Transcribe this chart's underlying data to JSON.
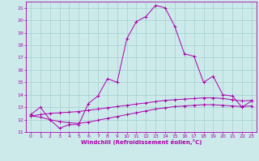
{
  "xlabel": "Windchill (Refroidissement éolien,°C)",
  "xlim": [
    -0.5,
    23.5
  ],
  "ylim": [
    11,
    21.5
  ],
  "yticks": [
    11,
    12,
    13,
    14,
    15,
    16,
    17,
    18,
    19,
    20,
    21
  ],
  "xticks": [
    0,
    1,
    2,
    3,
    4,
    5,
    6,
    7,
    8,
    9,
    10,
    11,
    12,
    13,
    14,
    15,
    16,
    17,
    18,
    19,
    20,
    21,
    22,
    23
  ],
  "bg_color": "#cceaea",
  "grid_color": "#aad4d4",
  "line_color": "#aa00aa",
  "line1_x": [
    0,
    1,
    2,
    3,
    4,
    5,
    6,
    7,
    8,
    9,
    10,
    11,
    12,
    13,
    14,
    15,
    16,
    17,
    18,
    19,
    20,
    21,
    22,
    23
  ],
  "line1_y": [
    12.4,
    13.0,
    12.0,
    11.3,
    11.6,
    11.6,
    13.3,
    13.9,
    15.3,
    15.0,
    18.5,
    19.9,
    20.3,
    21.2,
    21.0,
    19.5,
    17.3,
    17.1,
    15.0,
    15.5,
    14.0,
    13.9,
    13.0,
    13.5
  ],
  "line2_x": [
    0,
    1,
    2,
    3,
    4,
    5,
    6,
    7,
    8,
    9,
    10,
    11,
    12,
    13,
    14,
    15,
    16,
    17,
    18,
    19,
    20,
    21,
    22,
    23
  ],
  "line2_y": [
    12.3,
    12.4,
    12.5,
    12.55,
    12.6,
    12.65,
    12.75,
    12.85,
    12.95,
    13.05,
    13.15,
    13.25,
    13.35,
    13.45,
    13.55,
    13.6,
    13.65,
    13.7,
    13.75,
    13.75,
    13.7,
    13.6,
    13.5,
    13.55
  ],
  "line3_x": [
    0,
    1,
    2,
    3,
    4,
    5,
    6,
    7,
    8,
    9,
    10,
    11,
    12,
    13,
    14,
    15,
    16,
    17,
    18,
    19,
    20,
    21,
    22,
    23
  ],
  "line3_y": [
    12.3,
    12.2,
    12.0,
    11.85,
    11.75,
    11.7,
    11.8,
    11.95,
    12.1,
    12.25,
    12.4,
    12.55,
    12.7,
    12.85,
    12.95,
    13.05,
    13.1,
    13.15,
    13.2,
    13.2,
    13.15,
    13.1,
    13.05,
    13.1
  ]
}
